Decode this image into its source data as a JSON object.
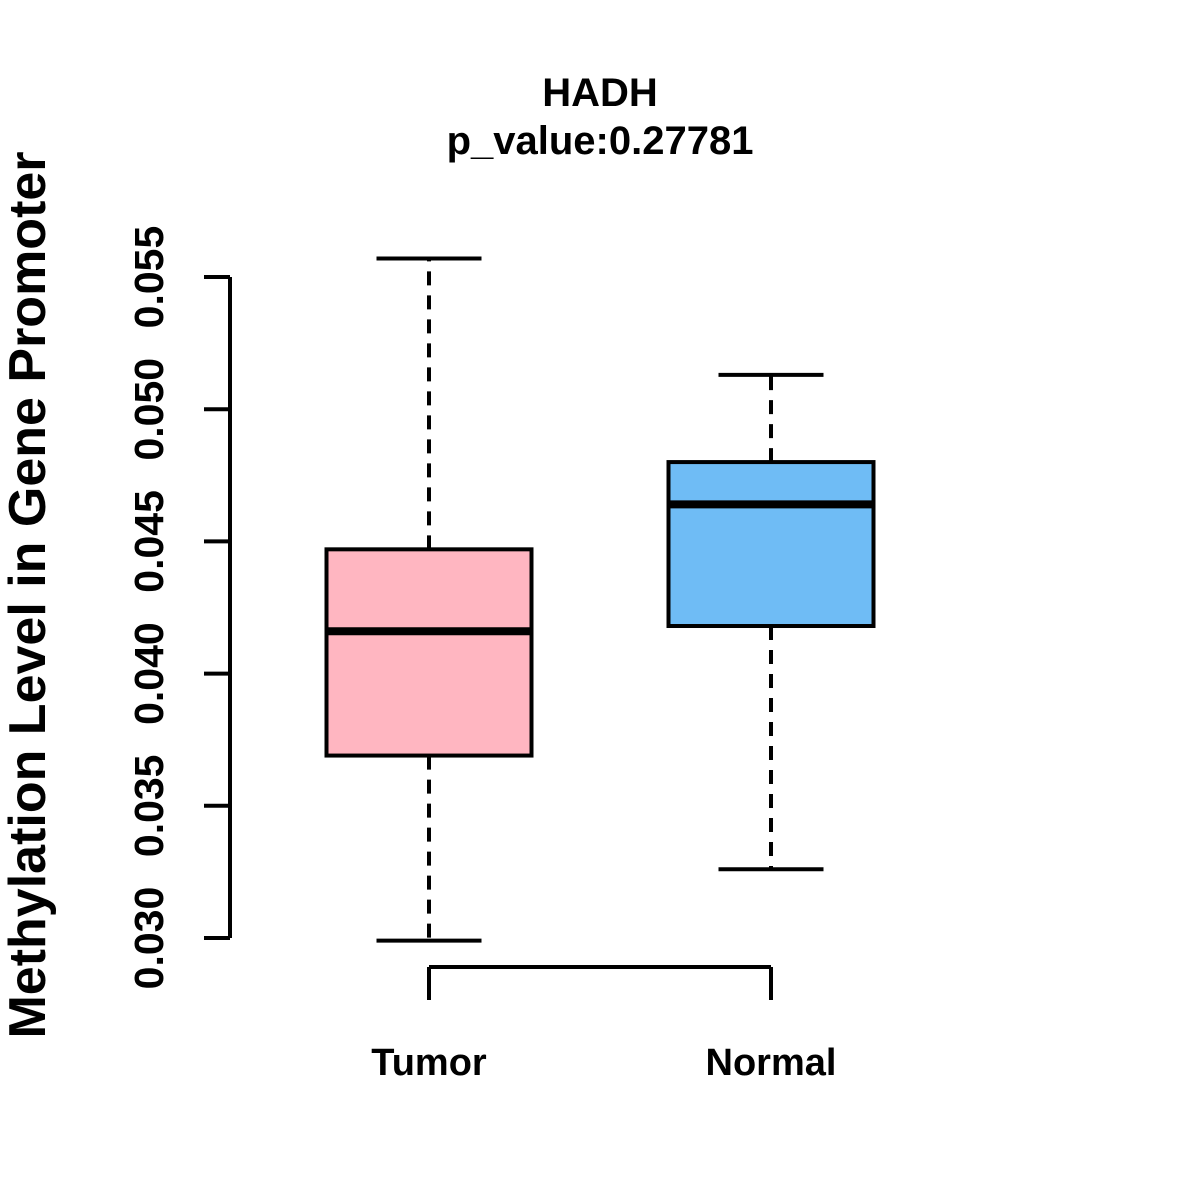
{
  "chart_data": {
    "type": "boxplot",
    "title": "HADH",
    "subtitle": "p_value:0.27781",
    "ylabel": "Methylation Level in Gene Promoter",
    "xlabel": "",
    "yticks": [
      0.03,
      0.035,
      0.04,
      0.045,
      0.05,
      0.055
    ],
    "ytick_labels": [
      "0.030",
      "0.035",
      "0.040",
      "0.045",
      "0.050",
      "0.055"
    ],
    "ylim": [
      0.0295,
      0.056
    ],
    "grid": false,
    "legend": "none",
    "categories": [
      "Tumor",
      "Normal"
    ],
    "series": [
      {
        "name": "Tumor",
        "group_label": "Tumor",
        "box_fill": "#FFB6C1",
        "whisker_low": 0.0299,
        "q1": 0.0369,
        "median": 0.0416,
        "q3": 0.0447,
        "whisker_high": 0.0557,
        "outliers": []
      },
      {
        "name": "Normal",
        "group_label": "Normal",
        "box_fill": "#6FBCF5",
        "whisker_low": 0.0326,
        "q1": 0.0418,
        "median": 0.0464,
        "q3": 0.048,
        "whisker_high": 0.0513,
        "outliers": []
      }
    ],
    "colors": {
      "tumor_box": "#FFB6C1",
      "normal_box": "#6FBCF5",
      "line": "#000000",
      "background": "#FFFFFF"
    }
  }
}
